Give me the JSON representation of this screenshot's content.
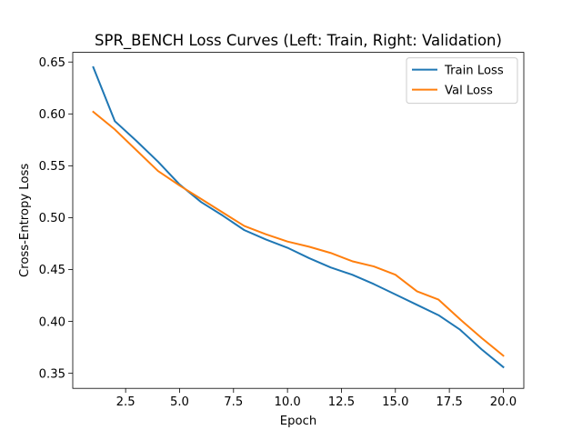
{
  "chart_data": {
    "type": "line",
    "title": "SPR_BENCH Loss Curves (Left: Train, Right: Validation)",
    "xlabel": "Epoch",
    "ylabel": "Cross-Entropy Loss",
    "xlim": [
      0.05,
      20.95
    ],
    "ylim": [
      0.3355,
      0.6593
    ],
    "xticks": [
      2.5,
      5.0,
      7.5,
      10.0,
      12.5,
      15.0,
      17.5,
      20.0
    ],
    "xtick_labels": [
      "2.5",
      "5.0",
      "7.5",
      "10.0",
      "12.5",
      "15.0",
      "17.5",
      "20.0"
    ],
    "yticks": [
      0.35,
      0.4,
      0.45,
      0.5,
      0.55,
      0.6,
      0.65
    ],
    "ytick_labels": [
      "0.35",
      "0.40",
      "0.45",
      "0.50",
      "0.55",
      "0.60",
      "0.65"
    ],
    "grid": false,
    "legend_position": "top-right",
    "x": [
      1,
      2,
      3,
      4,
      5,
      6,
      7,
      8,
      9,
      10,
      11,
      12,
      13,
      14,
      15,
      16,
      17,
      18,
      19,
      20
    ],
    "series": [
      {
        "name": "Train Loss",
        "color": "#1f77b4",
        "values": [
          0.645,
          0.593,
          0.574,
          0.554,
          0.532,
          0.515,
          0.502,
          0.488,
          0.479,
          0.471,
          0.461,
          0.452,
          0.445,
          0.436,
          0.426,
          0.416,
          0.406,
          0.392,
          0.373,
          0.356
        ]
      },
      {
        "name": "Val Loss",
        "color": "#ff7f0e",
        "values": [
          0.602,
          0.585,
          0.565,
          0.545,
          0.531,
          0.518,
          0.505,
          0.492,
          0.484,
          0.477,
          0.472,
          0.466,
          0.458,
          0.453,
          0.445,
          0.429,
          0.421,
          0.402,
          0.384,
          0.367
        ]
      }
    ]
  }
}
